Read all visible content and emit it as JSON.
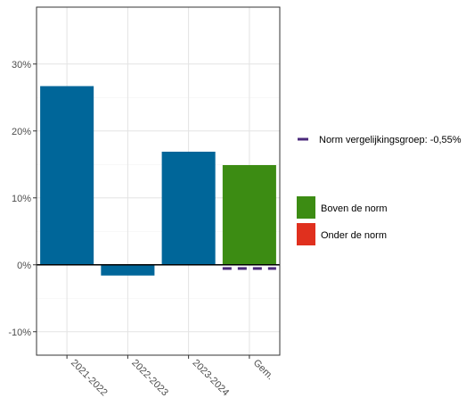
{
  "chart_data": {
    "type": "bar",
    "categories": [
      "2021-2022",
      "2022-2023",
      "2023-2024",
      "Gem."
    ],
    "values": [
      26.7,
      -1.6,
      16.9,
      14.9
    ],
    "bar_colors": [
      "#006699",
      "#006699",
      "#006699",
      "#3c8c13"
    ],
    "ylim": [
      -13.5,
      38.5
    ],
    "y_ticks": [
      -10,
      0,
      10,
      20,
      30
    ],
    "y_tick_labels": [
      "-10%",
      "0%",
      "10%",
      "20%",
      "30%"
    ],
    "norm_line": {
      "label": "Norm vergelijkingsgroep: -0,55%",
      "value": -0.55,
      "category": "Gem.",
      "color": "#4b2a7b"
    },
    "legend": [
      {
        "label": "Boven de norm",
        "color": "#3c8c13"
      },
      {
        "label": "Onder de norm",
        "color": "#e0301e"
      }
    ],
    "grid": true,
    "legend_position": "right"
  }
}
